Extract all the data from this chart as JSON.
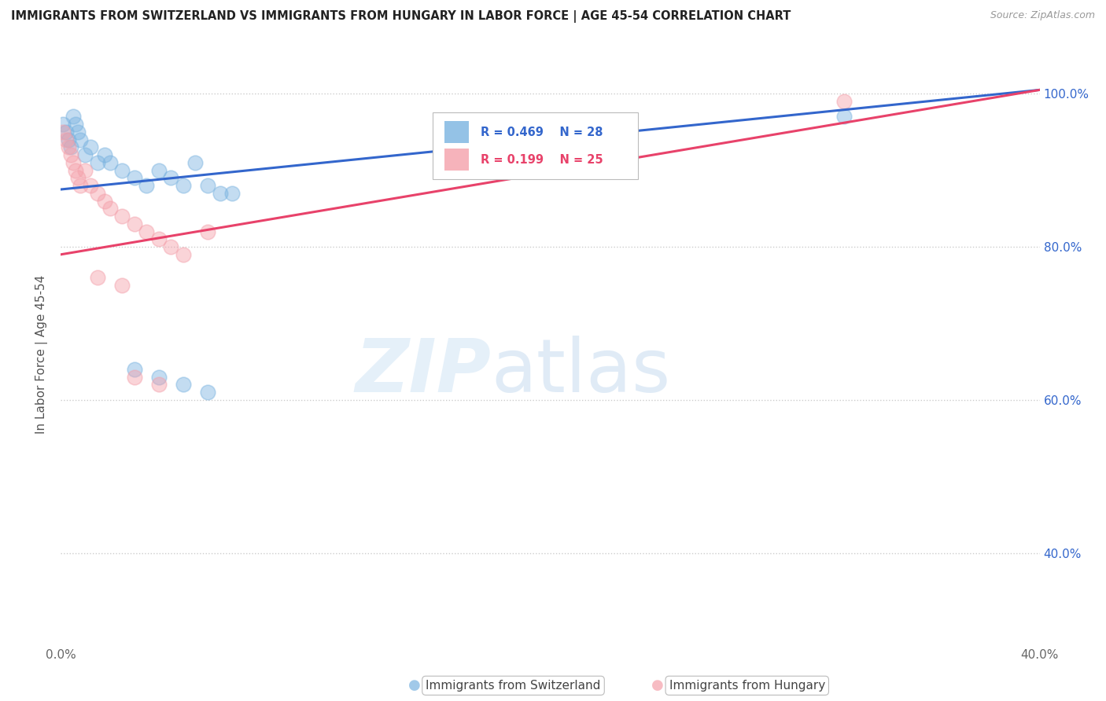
{
  "title": "IMMIGRANTS FROM SWITZERLAND VS IMMIGRANTS FROM HUNGARY IN LABOR FORCE | AGE 45-54 CORRELATION CHART",
  "source": "Source: ZipAtlas.com",
  "ylabel": "In Labor Force | Age 45-54",
  "xlim": [
    0.0,
    0.4
  ],
  "ylim": [
    0.28,
    1.04
  ],
  "legend_r_blue": "R = 0.469",
  "legend_n_blue": "N = 28",
  "legend_r_pink": "R = 0.199",
  "legend_n_pink": "N = 25",
  "blue_color": "#7ab3e0",
  "pink_color": "#f4a0aa",
  "blue_line_color": "#3366cc",
  "pink_line_color": "#e8426a",
  "grid_color": "#cccccc",
  "background_color": "#ffffff",
  "switzerland_points_x": [
    0.001,
    0.002,
    0.003,
    0.004,
    0.005,
    0.006,
    0.007,
    0.008,
    0.01,
    0.012,
    0.015,
    0.018,
    0.02,
    0.025,
    0.03,
    0.035,
    0.04,
    0.045,
    0.05,
    0.055,
    0.06,
    0.065,
    0.07,
    0.03,
    0.04,
    0.05,
    0.06,
    0.32
  ],
  "switzerland_points_y": [
    0.96,
    0.95,
    0.94,
    0.93,
    0.97,
    0.96,
    0.95,
    0.94,
    0.92,
    0.93,
    0.91,
    0.92,
    0.91,
    0.9,
    0.89,
    0.88,
    0.9,
    0.89,
    0.88,
    0.91,
    0.88,
    0.87,
    0.87,
    0.64,
    0.63,
    0.62,
    0.61,
    0.97
  ],
  "hungary_points_x": [
    0.001,
    0.002,
    0.003,
    0.004,
    0.005,
    0.006,
    0.007,
    0.008,
    0.01,
    0.012,
    0.015,
    0.018,
    0.02,
    0.025,
    0.03,
    0.035,
    0.04,
    0.045,
    0.05,
    0.015,
    0.025,
    0.06,
    0.03,
    0.04,
    0.32
  ],
  "hungary_points_y": [
    0.95,
    0.94,
    0.93,
    0.92,
    0.91,
    0.9,
    0.89,
    0.88,
    0.9,
    0.88,
    0.87,
    0.86,
    0.85,
    0.84,
    0.83,
    0.82,
    0.81,
    0.8,
    0.79,
    0.76,
    0.75,
    0.82,
    0.63,
    0.62,
    0.99
  ],
  "blue_line_x": [
    0.0,
    0.4
  ],
  "blue_line_y": [
    0.875,
    1.005
  ],
  "pink_line_x": [
    0.0,
    0.4
  ],
  "pink_line_y": [
    0.79,
    1.005
  ],
  "watermark_zip": "ZIP",
  "watermark_atlas": "atlas",
  "legend_label_blue": "Immigrants from Switzerland",
  "legend_label_pink": "Immigrants from Hungary",
  "ytick_positions": [
    0.4,
    0.6,
    0.8,
    1.0
  ],
  "ytick_labels": [
    "40.0%",
    "60.0%",
    "80.0%",
    "100.0%"
  ],
  "xtick_positions": [
    0.0,
    0.1,
    0.2,
    0.3,
    0.4
  ],
  "xtick_labels": [
    "0.0%",
    "",
    "",
    "",
    "40.0%"
  ]
}
